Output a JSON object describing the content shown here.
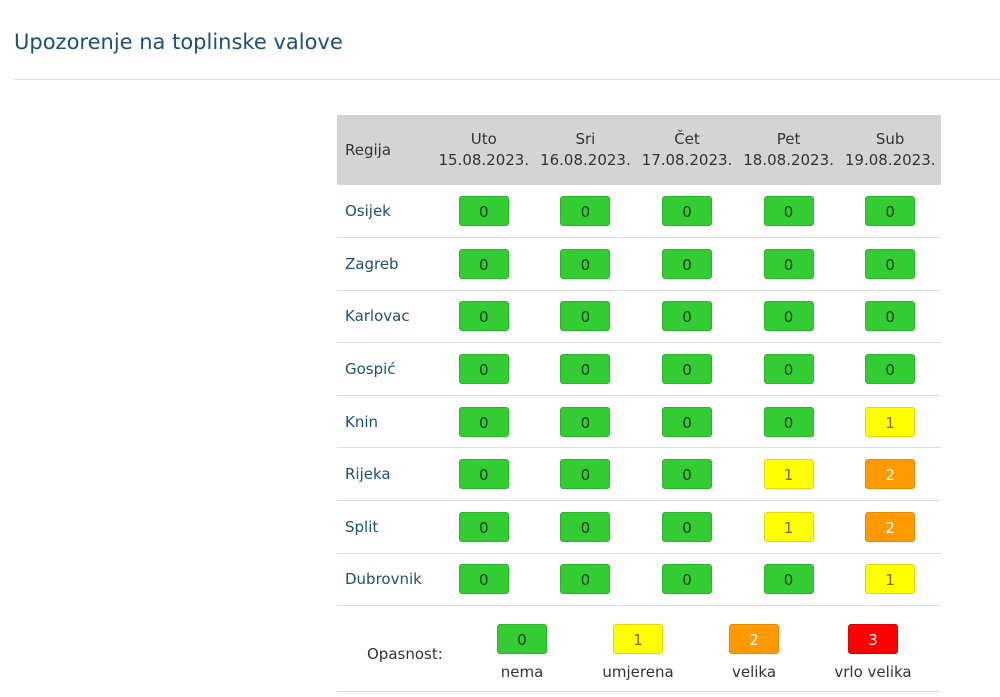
{
  "page": {
    "title": "Upozorenje na toplinske valove"
  },
  "table": {
    "region_header": "Regija",
    "days": [
      {
        "name": "Uto",
        "date": "15.08.2023."
      },
      {
        "name": "Sri",
        "date": "16.08.2023."
      },
      {
        "name": "Čet",
        "date": "17.08.2023."
      },
      {
        "name": "Pet",
        "date": "18.08.2023."
      },
      {
        "name": "Sub",
        "date": "19.08.2023."
      }
    ],
    "rows": [
      {
        "region": "Osijek",
        "levels": [
          "0",
          "0",
          "0",
          "0",
          "0"
        ]
      },
      {
        "region": "Zagreb",
        "levels": [
          "0",
          "0",
          "0",
          "0",
          "0"
        ]
      },
      {
        "region": "Karlovac",
        "levels": [
          "0",
          "0",
          "0",
          "0",
          "0"
        ]
      },
      {
        "region": "Gospić",
        "levels": [
          "0",
          "0",
          "0",
          "0",
          "0"
        ]
      },
      {
        "region": "Knin",
        "levels": [
          "0",
          "0",
          "0",
          "0",
          "1"
        ]
      },
      {
        "region": "Rijeka",
        "levels": [
          "0",
          "0",
          "0",
          "1",
          "2"
        ]
      },
      {
        "region": "Split",
        "levels": [
          "0",
          "0",
          "0",
          "1",
          "2"
        ]
      },
      {
        "region": "Dubrovnik",
        "levels": [
          "0",
          "0",
          "0",
          "0",
          "1"
        ]
      }
    ]
  },
  "legend": {
    "label": "Opasnost:",
    "items": [
      {
        "level": "0",
        "text": "nema"
      },
      {
        "level": "1",
        "text": "umjerena"
      },
      {
        "level": "2",
        "text": "velika"
      },
      {
        "level": "3",
        "text": "vrlo velika"
      }
    ]
  },
  "colors": {
    "level_0": "#33cc33",
    "level_1": "#ffff00",
    "level_2": "#ff9900",
    "level_3": "#ff0000",
    "title": "#1f4e79",
    "header_bg": "#d4d4d4"
  }
}
